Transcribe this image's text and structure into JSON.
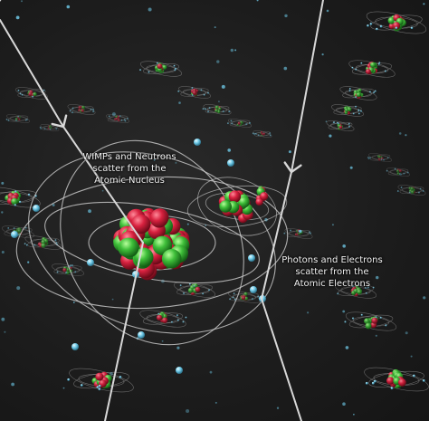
{
  "annotations": {
    "nucleus_label": {
      "line1": "WIMPs and Neutrons",
      "line2": "scatter from the",
      "line3": "Atomic Nucleus"
    },
    "electron_label": {
      "line1": "Photons and Electrons",
      "line2": "scatter from the",
      "line3": "Atomic Electrons"
    }
  },
  "colors": {
    "background": "#1c1c1c",
    "proton": "#d8213f",
    "neutron": "#3fbf3a",
    "electron": "#6ec8e6",
    "orbit": "#c8c8c8",
    "particle_track": "#d4d4d4"
  },
  "icons": {
    "incoming_particle": "arrow",
    "nucleus": "cluster-of-spheres",
    "electron": "small-sphere"
  }
}
